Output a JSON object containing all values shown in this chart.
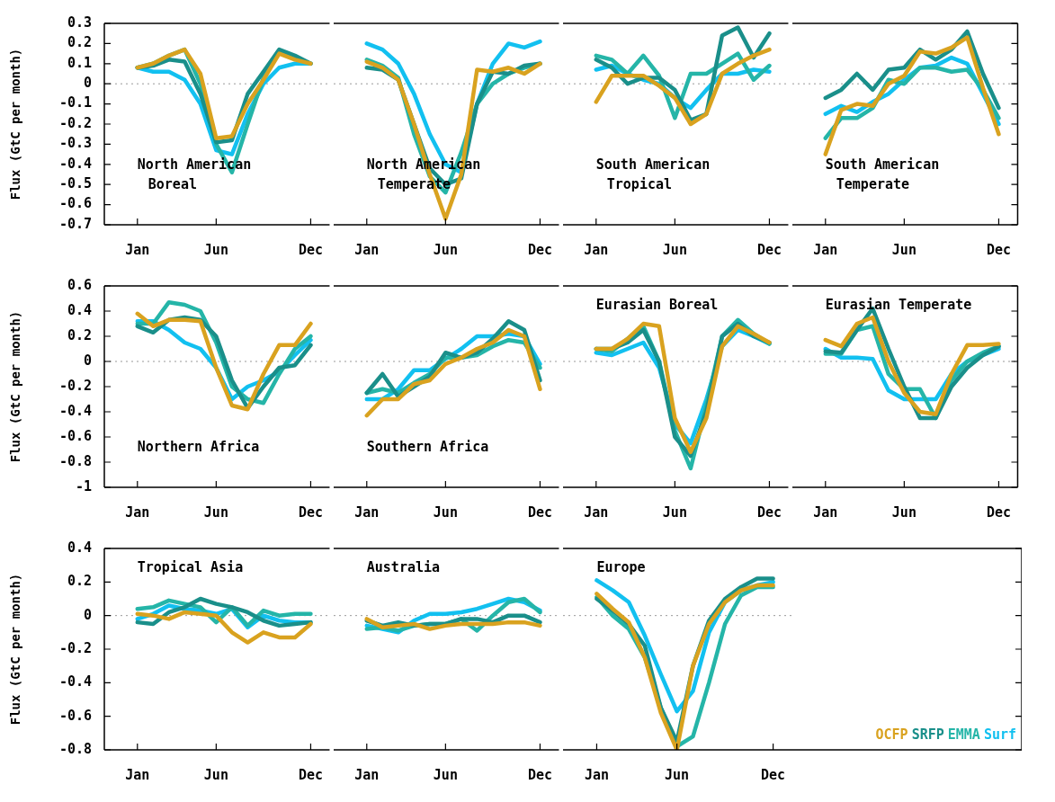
{
  "chart_data": [
    {
      "type": "line",
      "title": "North American\nBoreal",
      "ylabel": "Flux (GtC per month)",
      "categories": [
        "Jan",
        null,
        null,
        null,
        null,
        "Jun",
        null,
        null,
        null,
        null,
        null,
        "Dec"
      ],
      "ylim": [
        -0.7,
        0.3
      ],
      "yticks": [
        -0.7,
        -0.6,
        -0.5,
        -0.4,
        -0.3,
        -0.2,
        -0.1,
        0,
        0.1,
        0.2,
        0.3
      ],
      "ref_lines": [
        {
          "axis": "y",
          "value": 0,
          "color": "#999999",
          "line_style": "dotted"
        }
      ],
      "series": [
        {
          "color": "#d9a21f",
          "values": [
            0.08,
            0.1,
            0.14,
            0.17,
            0.05,
            -0.27,
            -0.26,
            -0.1,
            0.02,
            0.15,
            0.12,
            0.1
          ]
        },
        {
          "color": "#1a8f8a",
          "values": [
            0.08,
            0.09,
            0.12,
            0.11,
            -0.05,
            -0.29,
            -0.28,
            -0.05,
            0.06,
            0.17,
            0.14,
            0.1
          ]
        },
        {
          "color": "#25b5a8",
          "values": [
            0.08,
            0.1,
            0.14,
            0.17,
            0.0,
            -0.3,
            -0.44,
            -0.2,
            0.03,
            0.16,
            0.13,
            0.1
          ]
        },
        {
          "color": "#12c0f0",
          "values": [
            0.08,
            0.06,
            0.06,
            0.02,
            -0.1,
            -0.33,
            -0.35,
            -0.15,
            0.0,
            0.08,
            0.1,
            0.1
          ]
        }
      ]
    },
    {
      "type": "line",
      "title": "North American\nTemperate",
      "tick_labels": "x",
      "categories": [
        "Jan",
        null,
        null,
        null,
        null,
        "Jun",
        null,
        null,
        null,
        null,
        null,
        "Dec"
      ],
      "ylim": [
        -0.7,
        0.3
      ],
      "yticks": [
        -0.7,
        -0.6,
        -0.5,
        -0.4,
        -0.3,
        -0.2,
        -0.1,
        0,
        0.1,
        0.2,
        0.3
      ],
      "ref_lines": [
        {
          "axis": "y",
          "value": 0,
          "color": "#999999",
          "line_style": "dotted"
        }
      ],
      "series": [
        {
          "color": "#d9a21f",
          "values": [
            0.11,
            0.08,
            0.02,
            -0.2,
            -0.45,
            -0.67,
            -0.45,
            0.07,
            0.06,
            0.08,
            0.05,
            0.1
          ]
        },
        {
          "color": "#1a8f8a",
          "values": [
            0.08,
            0.07,
            0.02,
            -0.2,
            -0.42,
            -0.5,
            -0.47,
            -0.1,
            0.06,
            0.05,
            0.09,
            0.1
          ]
        },
        {
          "color": "#25b5a8",
          "values": [
            0.12,
            0.09,
            0.03,
            -0.25,
            -0.46,
            -0.54,
            -0.34,
            -0.1,
            0.0,
            0.05,
            0.08,
            0.1
          ]
        },
        {
          "color": "#12c0f0",
          "values": [
            0.2,
            0.17,
            0.1,
            -0.05,
            -0.25,
            -0.4,
            -0.44,
            -0.1,
            0.1,
            0.2,
            0.18,
            0.21
          ]
        }
      ]
    },
    {
      "type": "line",
      "title": "South American\nTropical",
      "tick_labels": "x",
      "categories": [
        "Jan",
        null,
        null,
        null,
        null,
        "Jun",
        null,
        null,
        null,
        null,
        null,
        "Dec"
      ],
      "ylim": [
        -0.7,
        0.3
      ],
      "yticks": [
        -0.7,
        -0.6,
        -0.5,
        -0.4,
        -0.3,
        -0.2,
        -0.1,
        0,
        0.1,
        0.2,
        0.3
      ],
      "ref_lines": [
        {
          "axis": "y",
          "value": 0,
          "color": "#999999",
          "line_style": "dotted"
        }
      ],
      "series": [
        {
          "color": "#d9a21f",
          "values": [
            -0.09,
            0.04,
            0.04,
            0.04,
            -0.01,
            -0.07,
            -0.2,
            -0.15,
            0.05,
            0.1,
            0.14,
            0.17
          ]
        },
        {
          "color": "#1a8f8a",
          "values": [
            0.12,
            0.08,
            0.0,
            0.03,
            0.03,
            -0.03,
            -0.18,
            -0.15,
            0.24,
            0.28,
            0.13,
            0.25
          ]
        },
        {
          "color": "#25b5a8",
          "values": [
            0.14,
            0.12,
            0.05,
            0.14,
            0.04,
            -0.17,
            0.05,
            0.05,
            0.1,
            0.15,
            0.02,
            0.09
          ]
        },
        {
          "color": "#12c0f0",
          "values": [
            0.07,
            0.09,
            0.05,
            0.02,
            0.0,
            -0.07,
            -0.12,
            -0.03,
            0.05,
            0.05,
            0.07,
            0.06
          ]
        }
      ]
    },
    {
      "type": "line",
      "title": "South American\nTemperate",
      "tick_labels": "x",
      "categories": [
        "Jan",
        null,
        null,
        null,
        null,
        "Jun",
        null,
        null,
        null,
        null,
        null,
        "Dec"
      ],
      "ylim": [
        -0.7,
        0.3
      ],
      "yticks": [
        -0.7,
        -0.6,
        -0.5,
        -0.4,
        -0.3,
        -0.2,
        -0.1,
        0,
        0.1,
        0.2,
        0.3
      ],
      "ref_lines": [
        {
          "axis": "y",
          "value": 0,
          "color": "#999999",
          "line_style": "dotted"
        }
      ],
      "series": [
        {
          "color": "#d9a21f",
          "values": [
            -0.35,
            -0.13,
            -0.1,
            -0.11,
            0.0,
            0.04,
            0.16,
            0.15,
            0.18,
            0.23,
            -0.02,
            -0.25
          ]
        },
        {
          "color": "#1a8f8a",
          "values": [
            -0.07,
            -0.03,
            0.05,
            -0.03,
            0.07,
            0.08,
            0.17,
            0.12,
            0.17,
            0.26,
            0.05,
            -0.12
          ]
        },
        {
          "color": "#25b5a8",
          "values": [
            -0.27,
            -0.17,
            -0.17,
            -0.12,
            0.02,
            0.0,
            0.08,
            0.08,
            0.06,
            0.07,
            -0.03,
            -0.17
          ]
        },
        {
          "color": "#12c0f0",
          "values": [
            -0.15,
            -0.11,
            -0.14,
            -0.09,
            -0.05,
            0.02,
            0.08,
            0.09,
            0.13,
            0.1,
            -0.05,
            -0.2
          ]
        }
      ]
    },
    {
      "type": "line",
      "title": "Northern Africa",
      "ylabel": "Flux (GtC per month)",
      "categories": [
        "Jan",
        null,
        null,
        null,
        null,
        "Jun",
        null,
        null,
        null,
        null,
        null,
        "Dec"
      ],
      "ylim": [
        -1,
        0.6
      ],
      "yticks": [
        -1,
        -0.8,
        -0.6,
        -0.4,
        -0.2,
        0,
        0.2,
        0.4,
        0.6
      ],
      "ref_lines": [
        {
          "axis": "y",
          "value": 0,
          "color": "#999999",
          "line_style": "dotted"
        }
      ],
      "series": [
        {
          "color": "#d9a21f",
          "values": [
            0.38,
            0.28,
            0.33,
            0.33,
            0.32,
            -0.05,
            -0.35,
            -0.38,
            -0.1,
            0.13,
            0.13,
            0.3
          ]
        },
        {
          "color": "#1a8f8a",
          "values": [
            0.28,
            0.23,
            0.33,
            0.35,
            0.33,
            0.2,
            -0.15,
            -0.37,
            -0.2,
            -0.05,
            -0.03,
            0.13
          ]
        },
        {
          "color": "#25b5a8",
          "values": [
            0.3,
            0.3,
            0.47,
            0.45,
            0.4,
            0.15,
            -0.2,
            -0.3,
            -0.33,
            -0.1,
            0.1,
            0.2
          ]
        },
        {
          "color": "#12c0f0",
          "values": [
            0.32,
            0.32,
            0.25,
            0.15,
            0.1,
            -0.05,
            -0.3,
            -0.2,
            -0.15,
            -0.08,
            0.05,
            0.17
          ]
        }
      ]
    },
    {
      "type": "line",
      "title": "Southern Africa",
      "tick_labels": "x",
      "categories": [
        "Jan",
        null,
        null,
        null,
        null,
        "Jun",
        null,
        null,
        null,
        null,
        null,
        "Dec"
      ],
      "ylim": [
        -1,
        0.6
      ],
      "yticks": [
        -1,
        -0.8,
        -0.6,
        -0.4,
        -0.2,
        0,
        0.2,
        0.4,
        0.6
      ],
      "ref_lines": [
        {
          "axis": "y",
          "value": 0,
          "color": "#999999",
          "line_style": "dotted"
        }
      ],
      "series": [
        {
          "color": "#d9a21f",
          "values": [
            -0.43,
            -0.3,
            -0.3,
            -0.18,
            -0.15,
            -0.02,
            0.03,
            0.1,
            0.15,
            0.25,
            0.2,
            -0.22
          ]
        },
        {
          "color": "#1a8f8a",
          "values": [
            -0.25,
            -0.1,
            -0.28,
            -0.2,
            -0.12,
            0.07,
            0.03,
            0.07,
            0.18,
            0.32,
            0.25,
            -0.15
          ]
        },
        {
          "color": "#25b5a8",
          "values": [
            -0.25,
            -0.22,
            -0.25,
            -0.17,
            -0.1,
            0.03,
            0.03,
            0.05,
            0.12,
            0.17,
            0.15,
            -0.05
          ]
        },
        {
          "color": "#12c0f0",
          "values": [
            -0.3,
            -0.3,
            -0.22,
            -0.07,
            -0.07,
            0.02,
            0.1,
            0.2,
            0.2,
            0.22,
            0.2,
            -0.02
          ]
        }
      ]
    },
    {
      "type": "line",
      "title": "Eurasian Boreal",
      "tick_labels": "x",
      "categories": [
        "Jan",
        null,
        null,
        null,
        null,
        "Jun",
        null,
        null,
        null,
        null,
        null,
        "Dec"
      ],
      "ylim": [
        -1,
        0.6
      ],
      "yticks": [
        -1,
        -0.8,
        -0.6,
        -0.4,
        -0.2,
        0,
        0.2,
        0.4,
        0.6
      ],
      "ref_lines": [
        {
          "axis": "y",
          "value": 0,
          "color": "#999999",
          "line_style": "dotted"
        }
      ],
      "series": [
        {
          "color": "#d9a21f",
          "values": [
            0.1,
            0.1,
            0.18,
            0.3,
            0.28,
            -0.45,
            -0.72,
            -0.45,
            0.12,
            0.28,
            0.22,
            0.15
          ]
        },
        {
          "color": "#1a8f8a",
          "values": [
            0.1,
            0.1,
            0.15,
            0.25,
            0.0,
            -0.6,
            -0.75,
            -0.4,
            0.2,
            0.3,
            0.2,
            0.15
          ]
        },
        {
          "color": "#25b5a8",
          "values": [
            0.1,
            0.08,
            0.18,
            0.28,
            0.0,
            -0.55,
            -0.85,
            -0.35,
            0.2,
            0.33,
            0.22,
            0.14
          ]
        },
        {
          "color": "#12c0f0",
          "values": [
            0.07,
            0.05,
            0.1,
            0.15,
            -0.05,
            -0.5,
            -0.65,
            -0.3,
            0.12,
            0.25,
            0.2,
            0.14
          ]
        }
      ]
    },
    {
      "type": "line",
      "title": "Eurasian Temperate",
      "tick_labels": "x",
      "categories": [
        "Jan",
        null,
        null,
        null,
        null,
        "Jun",
        null,
        null,
        null,
        null,
        null,
        "Dec"
      ],
      "ylim": [
        -1,
        0.6
      ],
      "yticks": [
        -1,
        -0.8,
        -0.6,
        -0.4,
        -0.2,
        0,
        0.2,
        0.4,
        0.6
      ],
      "ref_lines": [
        {
          "axis": "y",
          "value": 0,
          "color": "#999999",
          "line_style": "dotted"
        }
      ],
      "series": [
        {
          "color": "#d9a21f",
          "values": [
            0.17,
            0.12,
            0.3,
            0.35,
            0.0,
            -0.25,
            -0.4,
            -0.42,
            -0.1,
            0.13,
            0.13,
            0.14
          ]
        },
        {
          "color": "#1a8f8a",
          "values": [
            0.08,
            0.07,
            0.25,
            0.42,
            0.1,
            -0.2,
            -0.45,
            -0.45,
            -0.2,
            -0.05,
            0.05,
            0.12
          ]
        },
        {
          "color": "#25b5a8",
          "values": [
            0.06,
            0.06,
            0.25,
            0.28,
            -0.1,
            -0.22,
            -0.22,
            -0.45,
            -0.15,
            0.0,
            0.07,
            0.12
          ]
        },
        {
          "color": "#12c0f0",
          "values": [
            0.1,
            0.03,
            0.03,
            0.02,
            -0.23,
            -0.3,
            -0.3,
            -0.3,
            -0.1,
            0.0,
            0.05,
            0.1
          ]
        }
      ]
    },
    {
      "type": "line",
      "title": "Tropical Asia",
      "ylabel": "Flux (GtC per month)",
      "categories": [
        "Jan",
        null,
        null,
        null,
        null,
        "Jun",
        null,
        null,
        null,
        null,
        null,
        "Dec"
      ],
      "ylim": [
        -0.8,
        0.4
      ],
      "yticks": [
        -0.8,
        -0.6,
        -0.4,
        -0.2,
        0,
        0.2,
        0.4
      ],
      "ref_lines": [
        {
          "axis": "y",
          "value": 0,
          "color": "#999999",
          "line_style": "dotted"
        }
      ],
      "series": [
        {
          "color": "#d9a21f",
          "values": [
            0.01,
            0.0,
            -0.02,
            0.02,
            0.01,
            0.0,
            -0.1,
            -0.16,
            -0.1,
            -0.13,
            -0.13,
            -0.05
          ]
        },
        {
          "color": "#1a8f8a",
          "values": [
            -0.04,
            -0.05,
            0.02,
            0.05,
            0.1,
            0.07,
            0.05,
            0.02,
            -0.03,
            -0.06,
            -0.05,
            -0.04
          ]
        },
        {
          "color": "#25b5a8",
          "values": [
            0.04,
            0.05,
            0.09,
            0.07,
            0.05,
            -0.04,
            0.05,
            -0.06,
            0.03,
            0.0,
            0.01,
            0.01
          ]
        },
        {
          "color": "#12c0f0",
          "values": [
            -0.02,
            0.01,
            0.06,
            0.04,
            0.03,
            0.01,
            0.04,
            -0.07,
            0.0,
            -0.03,
            -0.04,
            -0.04
          ]
        }
      ]
    },
    {
      "type": "line",
      "title": "Australia",
      "tick_labels": "x",
      "categories": [
        "Jan",
        null,
        null,
        null,
        null,
        "Jun",
        null,
        null,
        null,
        null,
        null,
        "Dec"
      ],
      "ylim": [
        -0.8,
        0.4
      ],
      "yticks": [
        -0.8,
        -0.6,
        -0.4,
        -0.2,
        0,
        0.2,
        0.4
      ],
      "ref_lines": [
        {
          "axis": "y",
          "value": 0,
          "color": "#999999",
          "line_style": "dotted"
        }
      ],
      "series": [
        {
          "color": "#d9a21f",
          "values": [
            -0.02,
            -0.07,
            -0.06,
            -0.05,
            -0.08,
            -0.06,
            -0.05,
            -0.05,
            -0.05,
            -0.04,
            -0.04,
            -0.06
          ]
        },
        {
          "color": "#1a8f8a",
          "values": [
            -0.03,
            -0.06,
            -0.04,
            -0.06,
            -0.05,
            -0.05,
            -0.02,
            -0.02,
            -0.04,
            0.0,
            0.0,
            -0.04
          ]
        },
        {
          "color": "#25b5a8",
          "values": [
            -0.08,
            -0.07,
            -0.09,
            -0.06,
            -0.05,
            -0.05,
            -0.02,
            -0.09,
            0.0,
            0.08,
            0.1,
            0.02
          ]
        },
        {
          "color": "#12c0f0",
          "values": [
            -0.06,
            -0.08,
            -0.1,
            -0.03,
            0.01,
            0.01,
            0.02,
            0.04,
            0.07,
            0.1,
            0.08,
            0.03
          ]
        }
      ]
    },
    {
      "type": "line",
      "title": "Europe",
      "tick_labels": "x",
      "legend": "bottom right",
      "categories": [
        "Jan",
        null,
        null,
        null,
        null,
        "Jun",
        null,
        null,
        null,
        null,
        null,
        "Dec"
      ],
      "ylim": [
        -0.8,
        0.4
      ],
      "yticks": [
        -0.8,
        -0.6,
        -0.4,
        -0.2,
        0,
        0.2,
        0.4
      ],
      "ref_lines": [
        {
          "axis": "y",
          "value": 0,
          "color": "#999999",
          "line_style": "dotted"
        }
      ],
      "series": [
        {
          "name": "OCFP",
          "color": "#d9a21f",
          "values": [
            0.13,
            0.04,
            -0.04,
            -0.25,
            -0.58,
            -0.8,
            -0.3,
            -0.05,
            0.08,
            0.15,
            0.18,
            0.18
          ]
        },
        {
          "name": "SRFP",
          "color": "#1a8f8a",
          "values": [
            0.1,
            0.03,
            -0.05,
            -0.18,
            -0.55,
            -0.75,
            -0.3,
            -0.03,
            0.1,
            0.17,
            0.22,
            0.22
          ]
        },
        {
          "name": "EMMA",
          "color": "#25b5a8",
          "values": [
            0.11,
            0.0,
            -0.08,
            -0.25,
            -0.55,
            -0.78,
            -0.72,
            -0.4,
            -0.05,
            0.12,
            0.17,
            0.17
          ]
        },
        {
          "name": "Surf",
          "color": "#12c0f0",
          "values": [
            0.21,
            0.15,
            0.08,
            -0.12,
            -0.35,
            -0.57,
            -0.45,
            -0.1,
            0.08,
            0.15,
            0.18,
            0.2
          ]
        }
      ]
    }
  ]
}
